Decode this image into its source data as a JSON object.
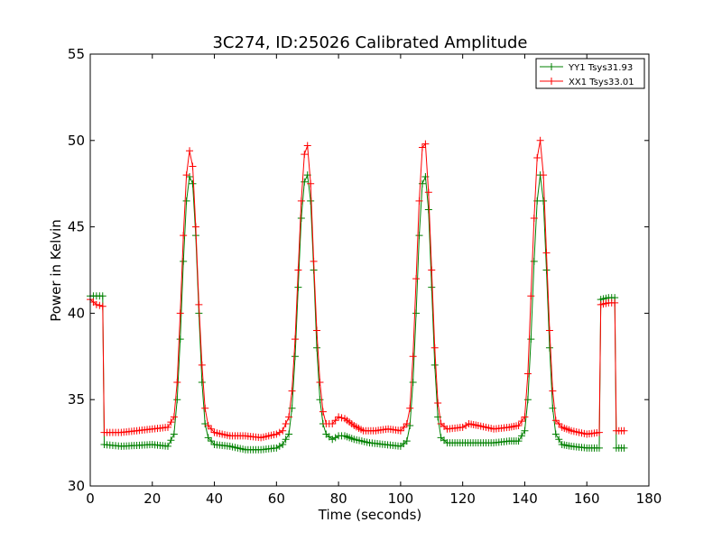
{
  "chart_data": {
    "type": "line",
    "title": "3C274, ID:25026 Calibrated Amplitude",
    "xlabel": "Time (seconds)",
    "ylabel": "Power in Kelvin",
    "xlim": [
      0,
      180
    ],
    "ylim": [
      30,
      55
    ],
    "xticks": [
      "0",
      "20",
      "40",
      "60",
      "80",
      "100",
      "120",
      "140",
      "160",
      "180"
    ],
    "yticks": [
      "30",
      "35",
      "40",
      "45",
      "50",
      "55"
    ],
    "grid": false,
    "legend_position": "top-right",
    "series": [
      {
        "name": "YY1 Tsys31.93",
        "color": "#008000",
        "marker": "plus",
        "points": [
          [
            0,
            41.0
          ],
          [
            2,
            41.0
          ],
          [
            4,
            41.0
          ],
          [
            4.5,
            32.4
          ],
          [
            10,
            32.3
          ],
          [
            20,
            32.4
          ],
          [
            25,
            32.3
          ],
          [
            27,
            33.0
          ],
          [
            28,
            35.0
          ],
          [
            29,
            38.5
          ],
          [
            30,
            43.0
          ],
          [
            31,
            46.5
          ],
          [
            32,
            47.9
          ],
          [
            33,
            47.5
          ],
          [
            34,
            44.5
          ],
          [
            35,
            40.0
          ],
          [
            36,
            36.0
          ],
          [
            37,
            33.6
          ],
          [
            38,
            32.8
          ],
          [
            40,
            32.4
          ],
          [
            45,
            32.3
          ],
          [
            50,
            32.1
          ],
          [
            55,
            32.1
          ],
          [
            60,
            32.2
          ],
          [
            62,
            32.4
          ],
          [
            64,
            33.0
          ],
          [
            65,
            34.5
          ],
          [
            66,
            37.5
          ],
          [
            67,
            41.5
          ],
          [
            68,
            45.5
          ],
          [
            69,
            47.6
          ],
          [
            70,
            48.0
          ],
          [
            71,
            46.5
          ],
          [
            72,
            42.5
          ],
          [
            73,
            38.0
          ],
          [
            74,
            35.0
          ],
          [
            75,
            33.6
          ],
          [
            76,
            33.0
          ],
          [
            78,
            32.7
          ],
          [
            80,
            32.9
          ],
          [
            82,
            32.9
          ],
          [
            85,
            32.7
          ],
          [
            90,
            32.5
          ],
          [
            95,
            32.4
          ],
          [
            100,
            32.3
          ],
          [
            102,
            32.6
          ],
          [
            103,
            33.5
          ],
          [
            104,
            36.0
          ],
          [
            105,
            40.0
          ],
          [
            106,
            44.5
          ],
          [
            107,
            47.5
          ],
          [
            108,
            47.9
          ],
          [
            109,
            46.0
          ],
          [
            110,
            41.5
          ],
          [
            111,
            37.0
          ],
          [
            112,
            34.0
          ],
          [
            113,
            32.8
          ],
          [
            115,
            32.5
          ],
          [
            120,
            32.5
          ],
          [
            125,
            32.5
          ],
          [
            130,
            32.5
          ],
          [
            135,
            32.6
          ],
          [
            138,
            32.6
          ],
          [
            140,
            33.2
          ],
          [
            141,
            35.0
          ],
          [
            142,
            38.5
          ],
          [
            143,
            43.0
          ],
          [
            144,
            46.5
          ],
          [
            145,
            48.0
          ],
          [
            146,
            46.5
          ],
          [
            147,
            42.5
          ],
          [
            148,
            38.0
          ],
          [
            149,
            34.5
          ],
          [
            150,
            33.0
          ],
          [
            152,
            32.4
          ],
          [
            155,
            32.3
          ],
          [
            160,
            32.2
          ],
          [
            164,
            32.2
          ],
          [
            164.5,
            40.8
          ],
          [
            167,
            40.9
          ],
          [
            169,
            40.9
          ],
          [
            169.5,
            32.2
          ],
          [
            172,
            32.2
          ]
        ]
      },
      {
        "name": "XX1 Tsys33.01",
        "color": "#ff0000",
        "marker": "plus",
        "points": [
          [
            0,
            40.8
          ],
          [
            2,
            40.5
          ],
          [
            4,
            40.4
          ],
          [
            4.5,
            33.1
          ],
          [
            10,
            33.1
          ],
          [
            15,
            33.2
          ],
          [
            20,
            33.3
          ],
          [
            25,
            33.4
          ],
          [
            27,
            34.0
          ],
          [
            28,
            36.0
          ],
          [
            29,
            40.0
          ],
          [
            30,
            44.5
          ],
          [
            31,
            48.0
          ],
          [
            32,
            49.4
          ],
          [
            33,
            48.5
          ],
          [
            34,
            45.0
          ],
          [
            35,
            40.5
          ],
          [
            36,
            37.0
          ],
          [
            37,
            34.5
          ],
          [
            38,
            33.5
          ],
          [
            40,
            33.1
          ],
          [
            45,
            32.9
          ],
          [
            50,
            32.9
          ],
          [
            55,
            32.8
          ],
          [
            60,
            33.0
          ],
          [
            62,
            33.2
          ],
          [
            64,
            34.0
          ],
          [
            65,
            35.5
          ],
          [
            66,
            38.5
          ],
          [
            67,
            42.5
          ],
          [
            68,
            46.5
          ],
          [
            69,
            49.2
          ],
          [
            70,
            49.7
          ],
          [
            71,
            47.5
          ],
          [
            72,
            43.0
          ],
          [
            73,
            39.0
          ],
          [
            74,
            36.0
          ],
          [
            75,
            34.3
          ],
          [
            76,
            33.6
          ],
          [
            78,
            33.6
          ],
          [
            80,
            34.0
          ],
          [
            82,
            33.9
          ],
          [
            85,
            33.5
          ],
          [
            88,
            33.2
          ],
          [
            92,
            33.2
          ],
          [
            96,
            33.3
          ],
          [
            100,
            33.2
          ],
          [
            102,
            33.6
          ],
          [
            103,
            34.5
          ],
          [
            104,
            37.5
          ],
          [
            105,
            42.0
          ],
          [
            106,
            46.5
          ],
          [
            107,
            49.6
          ],
          [
            108,
            49.8
          ],
          [
            109,
            47.0
          ],
          [
            110,
            42.5
          ],
          [
            111,
            38.0
          ],
          [
            112,
            34.8
          ],
          [
            113,
            33.6
          ],
          [
            115,
            33.3
          ],
          [
            120,
            33.4
          ],
          [
            122,
            33.6
          ],
          [
            125,
            33.5
          ],
          [
            130,
            33.3
          ],
          [
            135,
            33.4
          ],
          [
            138,
            33.5
          ],
          [
            140,
            34.0
          ],
          [
            141,
            36.5
          ],
          [
            142,
            41.0
          ],
          [
            143,
            45.5
          ],
          [
            144,
            49.0
          ],
          [
            145,
            50.0
          ],
          [
            146,
            48.0
          ],
          [
            147,
            43.5
          ],
          [
            148,
            39.0
          ],
          [
            149,
            35.5
          ],
          [
            150,
            33.8
          ],
          [
            152,
            33.4
          ],
          [
            155,
            33.2
          ],
          [
            160,
            33.0
          ],
          [
            164,
            33.1
          ],
          [
            164.5,
            40.5
          ],
          [
            167,
            40.6
          ],
          [
            169,
            40.6
          ],
          [
            169.5,
            33.2
          ],
          [
            172,
            33.2
          ]
        ]
      }
    ]
  }
}
